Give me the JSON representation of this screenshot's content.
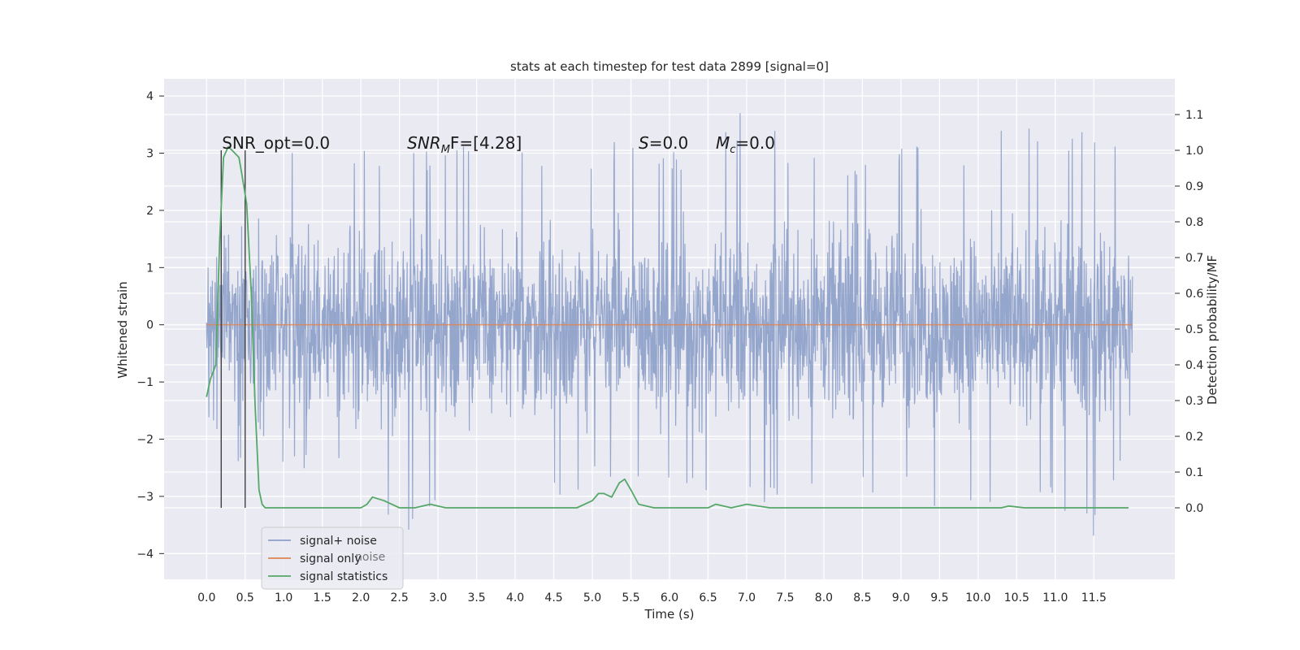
{
  "chart_data": {
    "type": "line",
    "title": "stats at each timestep for test data 2899 [signal=0]",
    "xlabel": "Time (s)",
    "ylabel": "Whitened strain",
    "y2label": "Detection probability/MF",
    "xlim": [
      -0.55,
      12.55
    ],
    "ylim": [
      -4.45,
      4.3
    ],
    "y2lim": [
      -0.2,
      1.2
    ],
    "xticks": [
      0.0,
      0.5,
      1.0,
      1.5,
      2.0,
      2.5,
      3.0,
      3.5,
      4.0,
      4.5,
      5.0,
      5.5,
      6.0,
      6.5,
      7.0,
      7.5,
      8.0,
      8.5,
      9.0,
      9.5,
      10.0,
      10.5,
      11.0,
      11.5
    ],
    "xtick_labels": [
      "0.0",
      "0.5",
      "1.0",
      "1.5",
      "2.0",
      "2.5",
      "3.0",
      "3.5",
      "4.0",
      "4.5",
      "5.0",
      "5.5",
      "6.0",
      "6.5",
      "7.0",
      "7.5",
      "8.0",
      "8.5",
      "9.0",
      "9.5",
      "10.0",
      "10.5",
      "11.0",
      "11.5"
    ],
    "yticks": [
      4,
      3,
      2,
      1,
      0,
      -1,
      -2,
      -3,
      -4
    ],
    "ytick_labels": [
      "4",
      "3",
      "2",
      "1",
      "0",
      "−1",
      "−2",
      "−3",
      "−4"
    ],
    "y2ticks": [
      1.1,
      1.0,
      0.9,
      0.8,
      0.7,
      0.6,
      0.5,
      0.4,
      0.3,
      0.2,
      0.1,
      0.0
    ],
    "y2tick_labels": [
      "1.1",
      "1.0",
      "0.9",
      "0.8",
      "0.7",
      "0.6",
      "0.5",
      "0.4",
      "0.3",
      "0.2",
      "0.1",
      "0.0"
    ],
    "grid": true,
    "legend_position": "lower-left",
    "series": [
      {
        "name": "signal+ noise",
        "axis": "left",
        "color": "#8c9ec9",
        "style": "dense noise trace, roughly ±2.2 spread",
        "t_range": [
          0.0,
          12.0
        ],
        "envelope_samples": {
          "t": [
            0.0,
            0.5,
            1.0,
            1.5,
            2.0,
            2.5,
            3.0,
            3.5,
            4.0,
            4.5,
            5.0,
            5.5,
            6.0,
            6.5,
            7.0,
            7.5,
            8.0,
            8.5,
            9.0,
            9.5,
            10.0,
            10.5,
            11.0,
            11.5,
            12.0
          ],
          "max": [
            1.0,
            2.4,
            3.3,
            3.4,
            3.2,
            2.9,
            3.2,
            3.3,
            3.1,
            3.0,
            3.2,
            3.3,
            3.0,
            3.2,
            3.9,
            3.3,
            3.0,
            3.1,
            3.2,
            3.1,
            3.3,
            3.5,
            3.3,
            3.5,
            3.2
          ],
          "min": [
            -1.6,
            -2.6,
            -2.7,
            -2.6,
            -2.7,
            -3.9,
            -3.1,
            -4.1,
            -3.3,
            -3.0,
            -2.9,
            -3.0,
            -3.1,
            -3.0,
            -3.1,
            -3.2,
            -2.9,
            -3.0,
            -3.0,
            -3.4,
            -3.3,
            -3.1,
            -3.2,
            -3.7,
            -2.2
          ]
        }
      },
      {
        "name": "signal only",
        "axis": "left",
        "color": "#dd8452",
        "x": [
          0.0,
          12.0
        ],
        "y": [
          0.0,
          0.0
        ]
      },
      {
        "name": "signal statistics",
        "axis": "right",
        "color": "#55a868",
        "x": [
          0.0,
          0.05,
          0.12,
          0.17,
          0.22,
          0.28,
          0.33,
          0.42,
          0.46,
          0.52,
          0.58,
          0.63,
          0.68,
          0.72,
          0.76,
          0.85,
          1.0,
          1.5,
          1.8,
          2.0,
          2.08,
          2.15,
          2.3,
          2.5,
          2.7,
          2.9,
          3.1,
          3.5,
          4.0,
          4.1,
          4.3,
          4.8,
          5.0,
          5.08,
          5.15,
          5.25,
          5.35,
          5.42,
          5.5,
          5.6,
          5.8,
          6.0,
          6.5,
          6.6,
          6.8,
          7.0,
          7.3,
          7.5,
          8.0,
          8.5,
          9.0,
          9.3,
          9.5,
          10.0,
          10.3,
          10.4,
          10.6,
          11.0,
          11.5,
          11.8,
          11.95
        ],
        "y": [
          0.31,
          0.36,
          0.4,
          0.75,
          0.98,
          1.01,
          1.0,
          0.98,
          0.93,
          0.85,
          0.6,
          0.28,
          0.05,
          0.01,
          0.0,
          0.0,
          0.0,
          0.0,
          0.0,
          0.0,
          0.01,
          0.03,
          0.02,
          0.0,
          0.0,
          0.01,
          0.0,
          0.0,
          0.0,
          0.0,
          0.0,
          0.0,
          0.02,
          0.04,
          0.04,
          0.03,
          0.07,
          0.08,
          0.05,
          0.01,
          0.0,
          0.0,
          0.0,
          0.01,
          0.0,
          0.01,
          0.0,
          0.0,
          0.0,
          0.0,
          0.0,
          0.0,
          0.0,
          0.0,
          0.0,
          0.005,
          0.0,
          0.0,
          0.0,
          0.0,
          0.0
        ]
      }
    ],
    "vlines": {
      "axis": "right",
      "color": "#404040",
      "x": [
        0.19,
        0.5
      ],
      "y_range": [
        0.0,
        1.0
      ]
    },
    "annotations": [
      {
        "text": "SNR_opt=0.0",
        "x": 0.2,
        "y2": 1.0,
        "italic": false
      },
      {
        "text": "SNR",
        "sub": "M",
        "rest": "F=[4.28]",
        "x": 2.6,
        "y2": 1.0,
        "italic_prefix": true
      },
      {
        "text": "S",
        "rest": "=0.0",
        "x": 5.6,
        "y2": 1.0,
        "italic_prefix": true
      },
      {
        "text": "M",
        "sub": "c",
        "rest": "=0.0",
        "x": 6.6,
        "y2": 1.0,
        "italic_prefix": true
      }
    ],
    "legend": [
      {
        "label": "signal+ noise",
        "color": "#8c9ec9"
      },
      {
        "label": "signal only",
        "color": "#dd8452"
      },
      {
        "label": "signal statistics",
        "color": "#55a868"
      }
    ],
    "legend_ghost_text": "noise"
  }
}
